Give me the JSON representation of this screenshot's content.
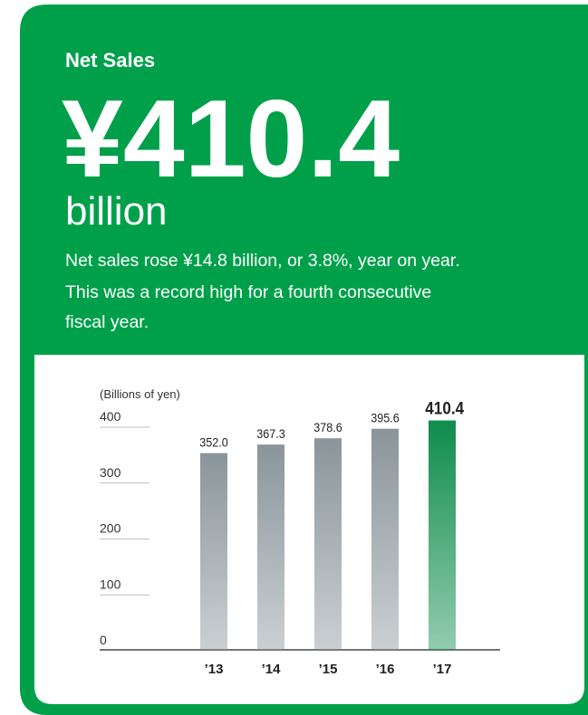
{
  "header": {
    "label": "Net Sales",
    "amount": "¥410.4",
    "unit": "billion",
    "description": [
      "Net sales rose ¥14.8 billion, or 3.8%, year on year.",
      "This was a record high for a fourth consecutive",
      "fiscal year."
    ]
  },
  "chart_data": {
    "type": "bar",
    "ylabel": "(Billions of yen)",
    "categories": [
      "’13",
      "’14",
      "’15",
      "’16",
      "’17"
    ],
    "values": [
      352.0,
      367.3,
      378.6,
      395.6,
      410.4
    ],
    "value_labels": [
      "352.0",
      "367.3",
      "378.6",
      "395.6",
      "410.4"
    ],
    "colors": [
      "#8a959b",
      "#8a959b",
      "#8a959b",
      "#8a959b",
      "#0f8c4c"
    ],
    "ylim": [
      0,
      400
    ],
    "yticks": [
      0,
      100,
      200,
      300,
      400
    ]
  }
}
